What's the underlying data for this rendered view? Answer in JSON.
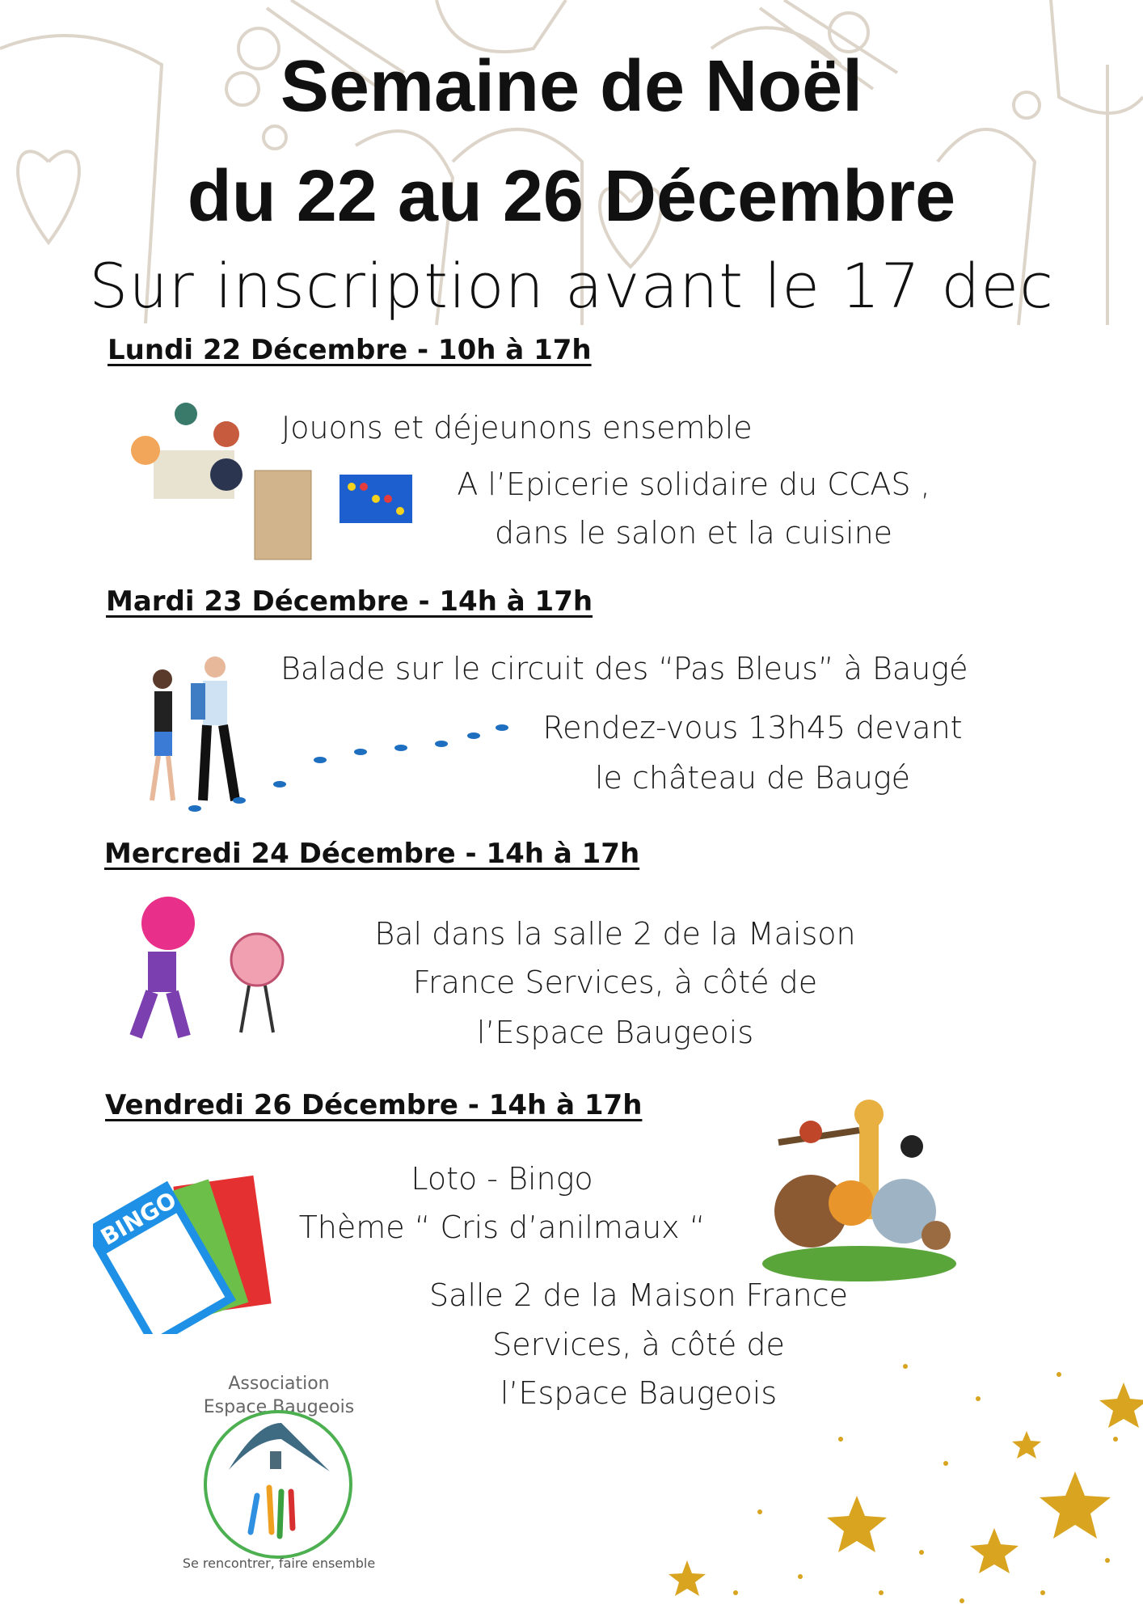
{
  "header": {
    "title_line1": "Semaine de Noël",
    "title_line2": "du 22 au 26 Décembre",
    "subtitle": "Sur inscription avant le 17 dec"
  },
  "events": [
    {
      "day": "Lundi 22 Décembre - 10h à 17h",
      "lines": [
        "Jouons et déjeunons ensemble",
        "A l’Epicerie solidaire du CCAS ,",
        "dans le salon et la cuisine"
      ]
    },
    {
      "day": "Mardi 23 Décembre - 14h à 17h",
      "lines": [
        "Balade sur le circuit des “Pas Bleus” à Baugé",
        "Rendez-vous 13h45 devant",
        "le château de Baugé"
      ]
    },
    {
      "day": "Mercredi 24 Décembre - 14h à 17h",
      "lines": [
        "Bal dans la salle 2 de la Maison",
        "France Services, à côté de",
        "l’Espace Baugeois"
      ]
    },
    {
      "day": "Vendredi 26 Décembre - 14h à 17h",
      "lines": [
        "Loto - Bingo",
        "Thème “ Cris d’anilmaux “",
        "Salle 2 de la Maison France",
        "Services, à côté de",
        "l’Espace Baugeois"
      ]
    }
  ],
  "logo": {
    "name_line1": "Association",
    "name_line2": "Espace Baugeois",
    "tagline": "Se rencontrer, faire ensemble"
  },
  "bingo_card": {
    "label": "BINGO"
  },
  "colors": {
    "pattern": "#d8d0c4",
    "gold": "#d9a520",
    "blue_steps": "#1f6fc0",
    "logo_green": "#4caf50"
  }
}
